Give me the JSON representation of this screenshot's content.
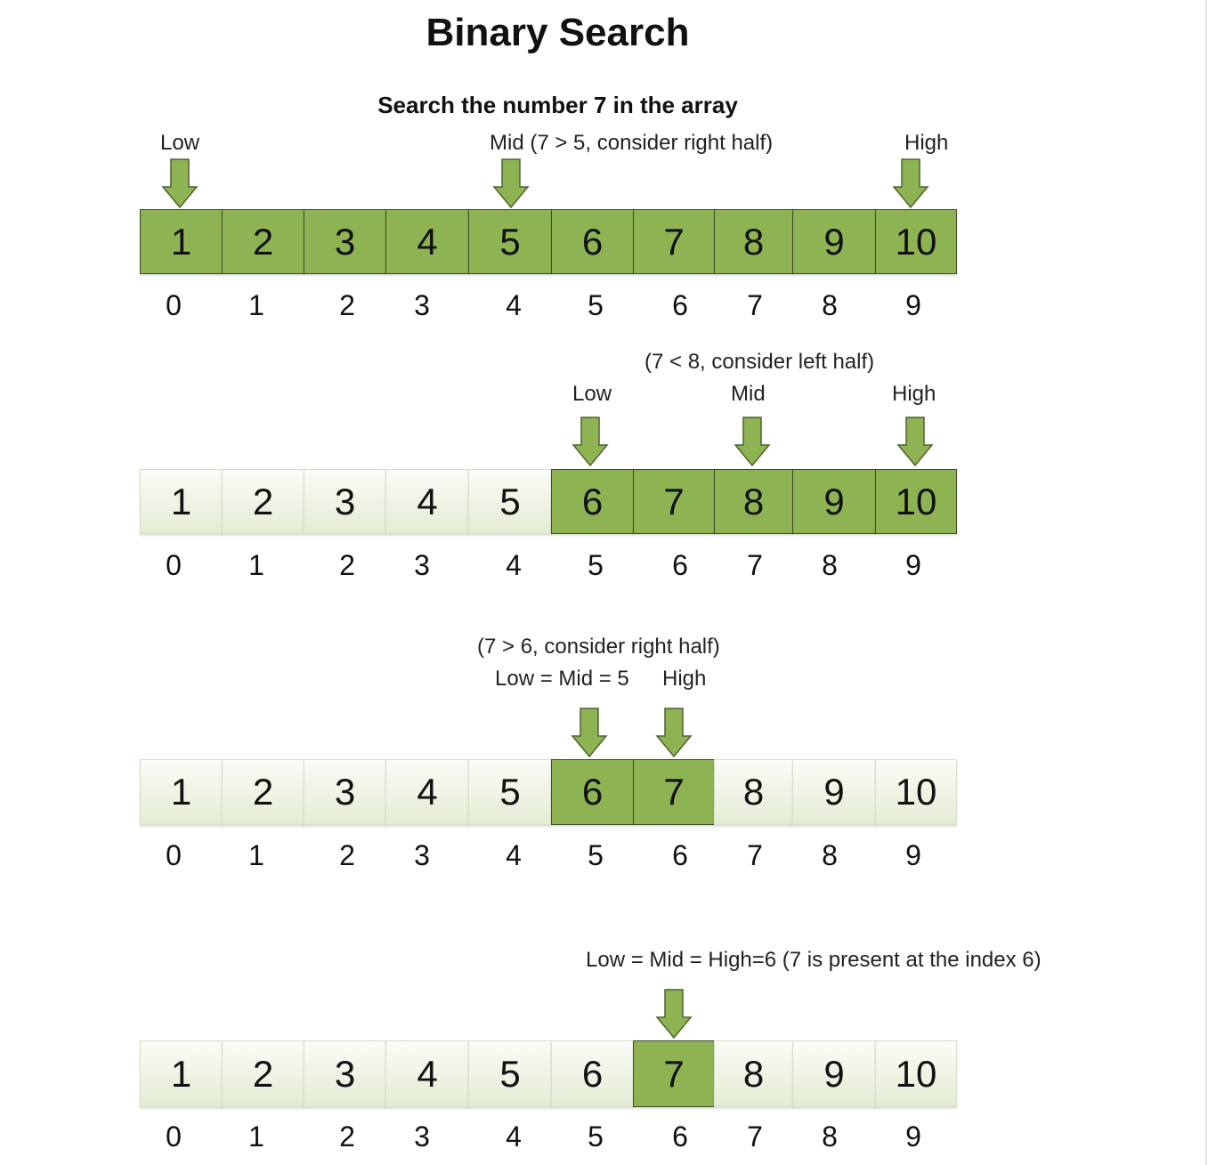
{
  "title": "Binary Search",
  "subtitle": "Search the number 7 in the array",
  "array": [
    1,
    2,
    3,
    4,
    5,
    6,
    7,
    8,
    9,
    10
  ],
  "indices": [
    0,
    1,
    2,
    3,
    4,
    5,
    6,
    7,
    8,
    9
  ],
  "colors": {
    "active": "#8db352",
    "arrow": "#8db352",
    "inactive": "#e3ecd3"
  },
  "steps": [
    {
      "active": [
        0,
        9
      ],
      "arrows_at_index": [
        0,
        4,
        9
      ],
      "labels": [
        "Low",
        "Mid (7 > 5, consider right half)",
        "High"
      ]
    },
    {
      "active": [
        5,
        9
      ],
      "arrows_at_index": [
        5,
        7,
        9
      ],
      "labels": [
        "(7 < 8, consider left half)",
        "Low",
        "Mid",
        "High"
      ]
    },
    {
      "active": [
        5,
        6
      ],
      "arrows_at_index": [
        5,
        6
      ],
      "labels": [
        "(7 > 6, consider right half)",
        "Low = Mid = 5",
        "High"
      ]
    },
    {
      "active": [
        6,
        6
      ],
      "arrows_at_index": [
        6
      ],
      "labels": [
        "Low = Mid = High=6 (7 is present at the index 6)"
      ]
    }
  ]
}
